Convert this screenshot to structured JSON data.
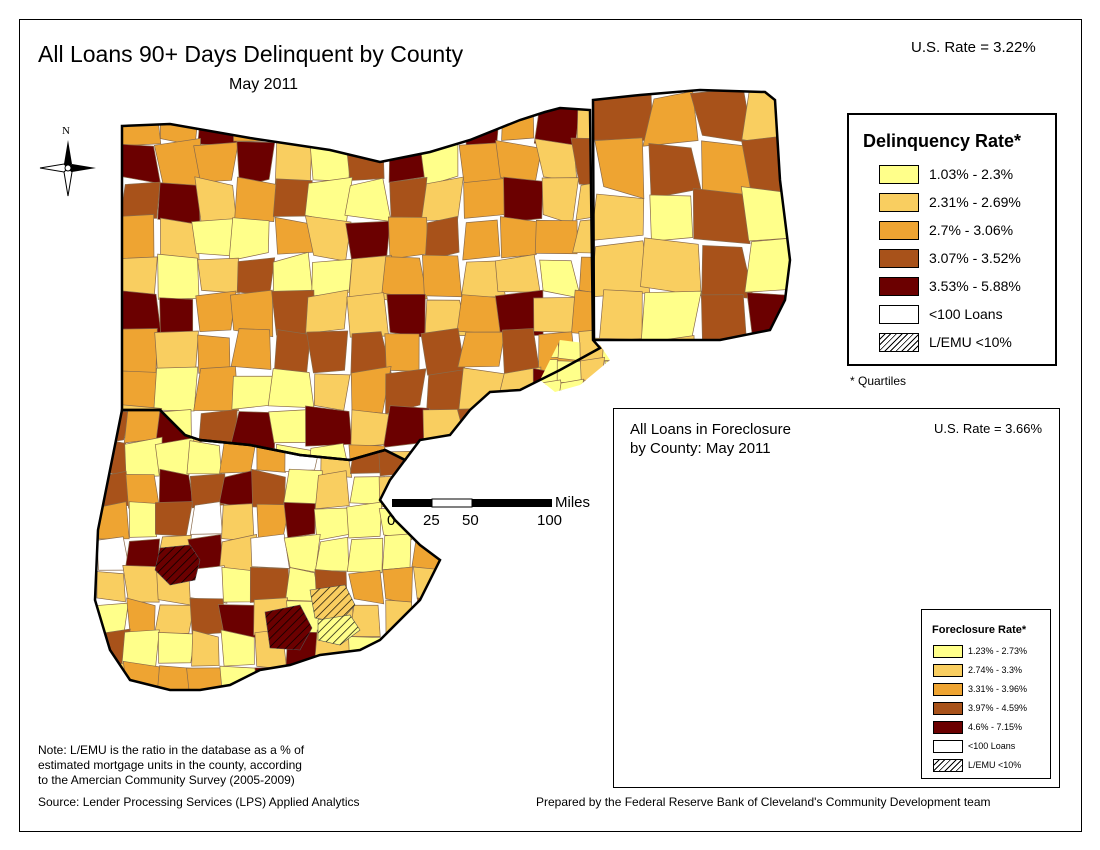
{
  "map": {
    "title": "All Loans 90+ Days Delinquent by County",
    "subtitle": "May 2011",
    "us_rate": "U.S. Rate = 3.22%",
    "north_label": "N",
    "scale": {
      "unit": "Miles",
      "ticks": [
        "0",
        "25",
        "50",
        "100"
      ]
    },
    "note": [
      "Note: L/EMU is the ratio in the database as a % of",
      "estimated mortgage units in the county, according",
      "to the Amercian Community Survey (2005-2009)"
    ],
    "source": "Source: Lender Processing Services (LPS) Applied Analytics",
    "credit": "Prepared by the Federal Reserve Bank of Cleveland's Community Development team"
  },
  "legend": {
    "title": "Delinquency Rate*",
    "items": [
      {
        "label": "1.03% - 2.3%",
        "color": "#ffff8a"
      },
      {
        "label": "2.31% - 2.69%",
        "color": "#f9ce60"
      },
      {
        "label": "2.7% - 3.06%",
        "color": "#eea432"
      },
      {
        "label": "3.07% - 3.52%",
        "color": "#a8521a"
      },
      {
        "label": "3.53% - 5.88%",
        "color": "#6b0000"
      },
      {
        "label": "<100 Loans",
        "color": "#ffffff"
      },
      {
        "label": "L/EMU <10%",
        "color": "hatch"
      }
    ],
    "footnote": "* Quartiles"
  },
  "inset": {
    "title_lines": [
      "All Loans in Foreclosure",
      "by County: May 2011"
    ],
    "us_rate": "U.S. Rate = 3.66%",
    "legend": {
      "title": "Foreclosure Rate*",
      "items": [
        {
          "label": "1.23% - 2.73%",
          "color": "#ffff8a"
        },
        {
          "label": "2.74% - 3.3%",
          "color": "#f9ce60"
        },
        {
          "label": "3.31% - 3.96%",
          "color": "#eea432"
        },
        {
          "label": "3.97% - 4.59%",
          "color": "#a8521a"
        },
        {
          "label": "4.6% - 7.15%",
          "color": "#6b0000"
        },
        {
          "label": "<100 Loans",
          "color": "#ffffff"
        },
        {
          "label": "L/EMU <10%",
          "color": "hatch"
        }
      ]
    }
  }
}
